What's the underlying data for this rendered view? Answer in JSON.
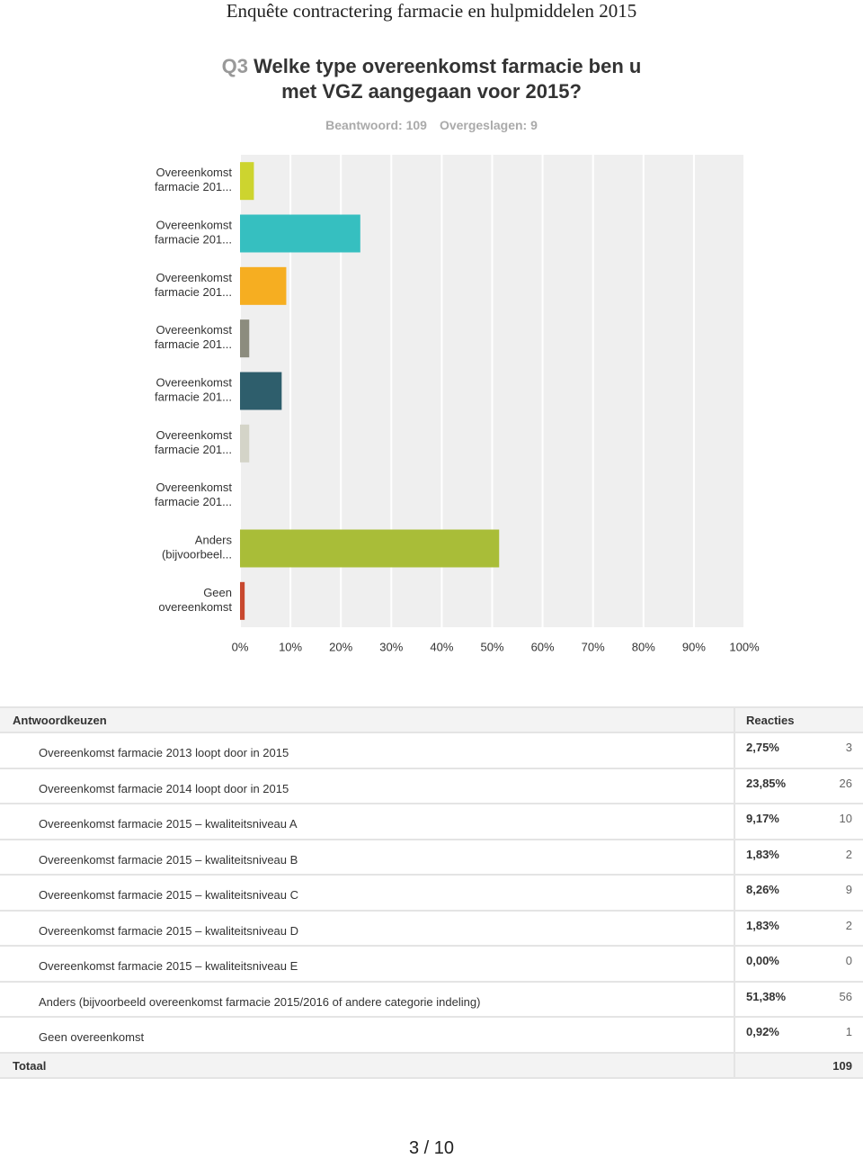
{
  "header": {
    "title": "Enquête contractering farmacie en hulpmiddelen 2015"
  },
  "question": {
    "number": "Q3",
    "text": "Welke type overeenkomst farmacie ben u met VGZ aangegaan voor 2015?",
    "answered": "Beantwoord: 109",
    "skipped": "Overgeslagen: 9"
  },
  "chart_data": {
    "type": "bar",
    "orientation": "horizontal",
    "categories": [
      "Overeenkomst farmacie 201...",
      "Overeenkomst farmacie 201...",
      "Overeenkomst farmacie 201...",
      "Overeenkomst farmacie 201...",
      "Overeenkomst farmacie 201...",
      "Overeenkomst farmacie 201...",
      "Overeenkomst farmacie 201...",
      "Anders (bijvoorbeel...",
      "Geen overeenkomst"
    ],
    "values": [
      2.75,
      23.85,
      9.17,
      1.83,
      8.26,
      1.83,
      0,
      51.38,
      0.92
    ],
    "colors": [
      "#cdd42f",
      "#36bfc0",
      "#f6ae21",
      "#8c8c7e",
      "#2e5e6c",
      "#d4d4c8",
      "#6b4c9a",
      "#a9bd38",
      "#c8482f"
    ],
    "xlim": [
      0,
      100
    ],
    "xticks": [
      {
        "value": 0,
        "label": "0%"
      },
      {
        "value": 10,
        "label": "10%"
      },
      {
        "value": 20,
        "label": "20%"
      },
      {
        "value": 30,
        "label": "30%"
      },
      {
        "value": 40,
        "label": "40%"
      },
      {
        "value": 50,
        "label": "50%"
      },
      {
        "value": 60,
        "label": "60%"
      },
      {
        "value": 70,
        "label": "70%"
      },
      {
        "value": 80,
        "label": "80%"
      },
      {
        "value": 90,
        "label": "90%"
      },
      {
        "value": 100,
        "label": "100%"
      }
    ],
    "grid": true
  },
  "table": {
    "headers": [
      "Antwoordkeuzen",
      "Reacties"
    ],
    "rows": [
      [
        "Overeenkomst farmacie 2013 loopt door in 2015",
        "2,75%",
        3
      ],
      [
        "Overeenkomst farmacie 2014 loopt door in 2015",
        "23,85%",
        26
      ],
      [
        "Overeenkomst farmacie 2015 – kwaliteitsniveau A",
        "9,17%",
        10
      ],
      [
        "Overeenkomst farmacie 2015 – kwaliteitsniveau B",
        "1,83%",
        2
      ],
      [
        "Overeenkomst farmacie 2015 – kwaliteitsniveau C",
        "8,26%",
        9
      ],
      [
        "Overeenkomst farmacie 2015 – kwaliteitsniveau D",
        "1,83%",
        2
      ],
      [
        "Overeenkomst farmacie 2015 – kwaliteitsniveau E",
        "0,00%",
        0
      ],
      [
        "Anders (bijvoorbeeld overeenkomst farmacie 2015/2016 of andere categorie indeling)",
        "51,38%",
        56
      ],
      [
        "Geen overeenkomst",
        "0,92%",
        1
      ]
    ],
    "total": [
      "Totaal",
      109
    ]
  },
  "footer": {
    "page": "3 / 10"
  }
}
